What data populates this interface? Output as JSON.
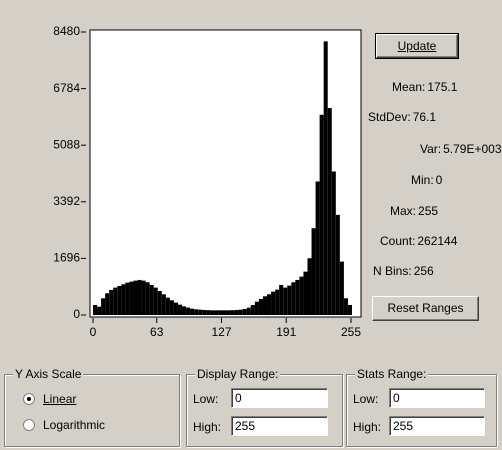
{
  "chart_data": {
    "type": "histogram",
    "bins": [
      0,
      4,
      8,
      12,
      16,
      20,
      24,
      28,
      32,
      36,
      40,
      44,
      48,
      52,
      56,
      60,
      64,
      68,
      72,
      76,
      80,
      84,
      88,
      92,
      96,
      100,
      104,
      108,
      112,
      116,
      120,
      124,
      128,
      132,
      136,
      140,
      144,
      148,
      152,
      156,
      160,
      164,
      168,
      172,
      176,
      180,
      184,
      188,
      192,
      196,
      200,
      204,
      208,
      212,
      216,
      220,
      224,
      228,
      232,
      236,
      240,
      244,
      248,
      252,
      256
    ],
    "values": [
      300,
      250,
      500,
      650,
      750,
      820,
      870,
      920,
      970,
      1000,
      1030,
      1050,
      1030,
      980,
      900,
      820,
      720,
      620,
      520,
      440,
      370,
      310,
      260,
      220,
      190,
      170,
      160,
      150,
      145,
      140,
      140,
      140,
      140,
      140,
      145,
      150,
      160,
      180,
      220,
      300,
      400,
      480,
      560,
      620,
      700,
      760,
      900,
      820,
      880,
      980,
      1050,
      1150,
      1300,
      1700,
      2600,
      4000,
      6000,
      8200,
      6200,
      4300,
      3000,
      1600,
      500,
      300
    ],
    "color": "#000000",
    "xlim": [
      0,
      256
    ],
    "xticks": [
      0,
      63,
      127,
      191,
      255
    ],
    "ylim": [
      0,
      8480
    ],
    "yticks": [
      0,
      1696,
      3392,
      5088,
      6784,
      8480
    ]
  },
  "buttons": {
    "update": "Update",
    "reset": "Reset Ranges"
  },
  "stats": [
    {
      "label": "Mean:",
      "value": "175.1"
    },
    {
      "label": "StdDev:",
      "value": "76.1"
    },
    {
      "label": "Var:",
      "value": "5.79E+003"
    },
    {
      "label": "Min:",
      "value": "0"
    },
    {
      "label": "Max:",
      "value": "255"
    },
    {
      "label": "Count:",
      "value": "262144"
    },
    {
      "label": "N Bins:",
      "value": "256"
    }
  ],
  "y_axis_scale": {
    "title": "Y Axis Scale",
    "options": [
      "Linear",
      "Logarithmic"
    ]
  },
  "display_range": {
    "title": "Display Range:",
    "low_label": "Low:",
    "low": "0",
    "high_label": "High:",
    "high": "255"
  },
  "stats_range": {
    "title": "Stats Range:",
    "low_label": "Low:",
    "low": "0",
    "high_label": "High:",
    "high": "255"
  }
}
